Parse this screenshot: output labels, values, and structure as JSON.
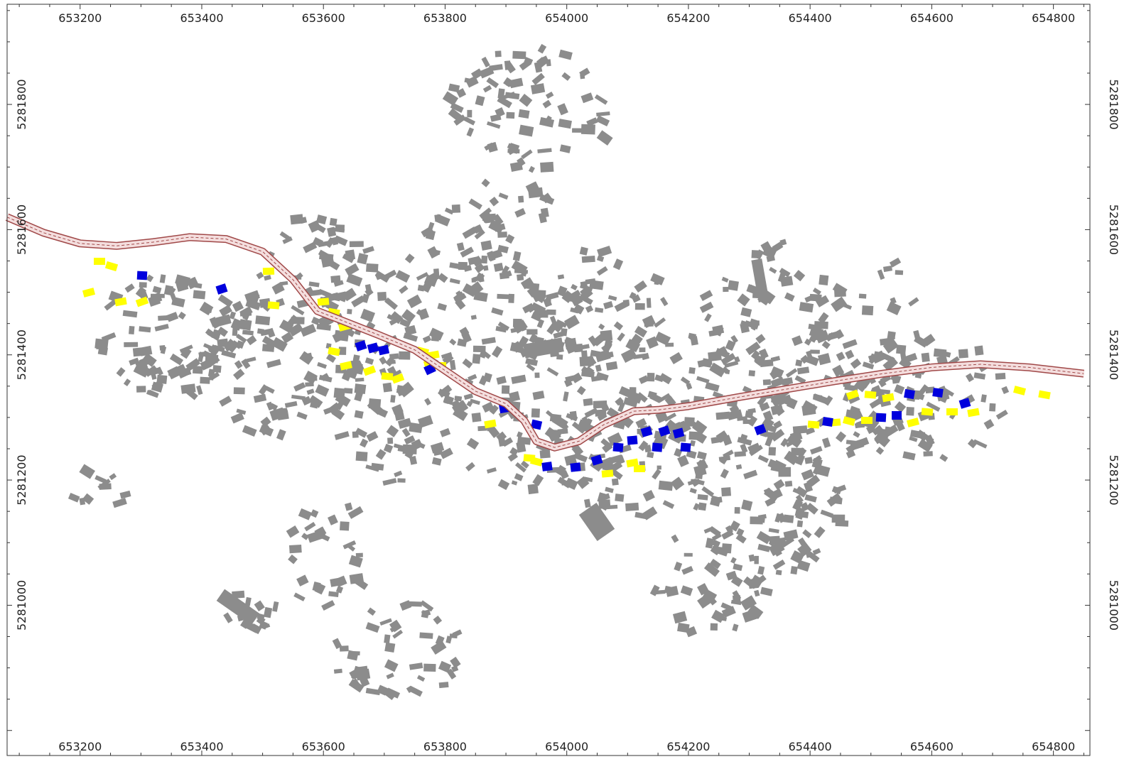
{
  "map": {
    "x_axis": {
      "range": [
        653080,
        654860
      ],
      "ticks": [
        "653200",
        "653400",
        "653600",
        "653800",
        "654000",
        "654200",
        "654400",
        "654600",
        "654800"
      ],
      "tick_values": [
        653200,
        653400,
        653600,
        653800,
        654000,
        654200,
        654400,
        654600,
        654800
      ]
    },
    "y_axis": {
      "range": [
        5280760,
        5281960
      ],
      "ticks": [
        "5281000",
        "5281200",
        "5281400",
        "5281600",
        "5281800"
      ],
      "tick_values": [
        5281000,
        5281200,
        5281400,
        5281600,
        5281800
      ]
    },
    "colors": {
      "building_default": "#8c8c8c",
      "building_yellow": "#ffff00",
      "building_blue": "#0000dd",
      "road_fill": "#f4dede",
      "road_edge": "#a04848",
      "frame": "#333333",
      "background": "#ffffff"
    },
    "road": {
      "name": "road-corridor",
      "path": [
        [
          653080,
          5281620
        ],
        [
          653140,
          5281595
        ],
        [
          653200,
          5281578
        ],
        [
          653260,
          5281574
        ],
        [
          653320,
          5281580
        ],
        [
          653380,
          5281588
        ],
        [
          653440,
          5281585
        ],
        [
          653500,
          5281565
        ],
        [
          653550,
          5281520
        ],
        [
          653590,
          5281470
        ],
        [
          653630,
          5281455
        ],
        [
          653690,
          5281432
        ],
        [
          653750,
          5281408
        ],
        [
          653800,
          5281375
        ],
        [
          653850,
          5281342
        ],
        [
          653900,
          5281322
        ],
        [
          653930,
          5281295
        ],
        [
          653950,
          5281262
        ],
        [
          653980,
          5281252
        ],
        [
          654020,
          5281262
        ],
        [
          654060,
          5281288
        ],
        [
          654110,
          5281310
        ],
        [
          654150,
          5281312
        ],
        [
          654200,
          5281318
        ],
        [
          654280,
          5281332
        ],
        [
          654360,
          5281345
        ],
        [
          654440,
          5281358
        ],
        [
          654520,
          5281370
        ],
        [
          654600,
          5281380
        ],
        [
          654680,
          5281385
        ],
        [
          654760,
          5281380
        ],
        [
          654850,
          5281370
        ]
      ]
    }
  }
}
